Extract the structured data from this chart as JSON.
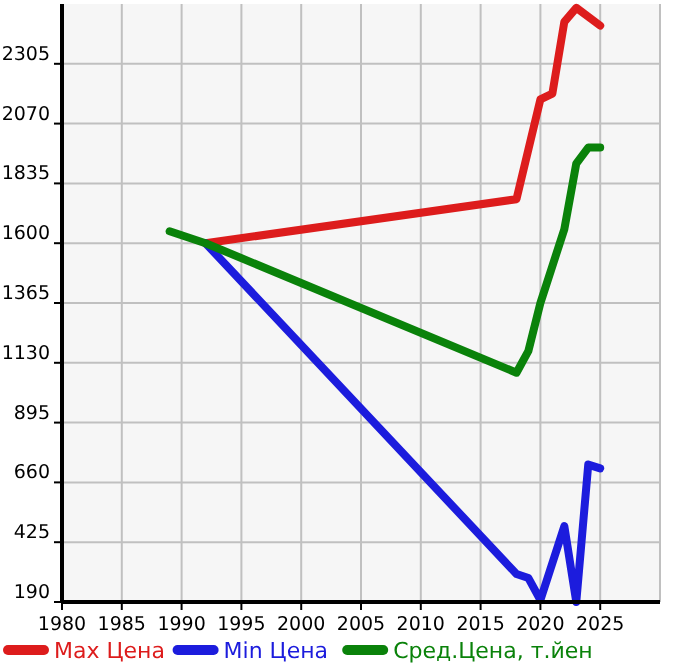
{
  "chart_data": {
    "type": "line",
    "xlim": [
      1980,
      2030
    ],
    "xticks": [
      1980,
      1985,
      1990,
      1995,
      2000,
      2005,
      2010,
      2015,
      2020,
      2025
    ],
    "ylim": [
      190,
      2540
    ],
    "yticks": [
      190,
      425,
      660,
      895,
      1130,
      1365,
      1600,
      1835,
      2070,
      2305
    ],
    "grid": true,
    "legend": "bottom",
    "series": [
      {
        "name": "Max Цена",
        "color": "#dd1c1c",
        "x": [
          1992,
          2018,
          2020,
          2021,
          2022,
          2023,
          2025
        ],
        "values": [
          1600,
          1773,
          2165,
          2188,
          2470,
          2525,
          2455
        ]
      },
      {
        "name": "Min Цена",
        "color": "#1c1cdd",
        "x": [
          1992,
          2018,
          2019,
          2020,
          2022,
          2023,
          2024,
          2025
        ],
        "values": [
          1600,
          300,
          284,
          198,
          488,
          190,
          730,
          715
        ]
      },
      {
        "name": "Сред.Цена, т.йен",
        "color": "#0a820a",
        "x": [
          1989,
          1992,
          2018,
          2019,
          2020,
          2022,
          2023,
          2024,
          2025
        ],
        "values": [
          1647,
          1600,
          1091,
          1177,
          1365,
          1655,
          1913,
          1976,
          1976
        ]
      }
    ]
  }
}
